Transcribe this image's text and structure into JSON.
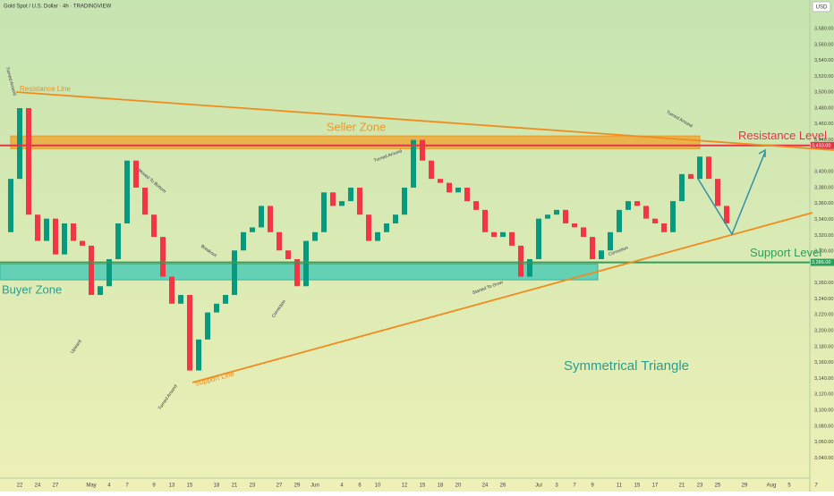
{
  "chart_data": {
    "type": "candlestick",
    "title": "Gold Spot / U.S. Dollar · 4h · TRADINGVIEW",
    "currency": "USD",
    "up_color": "#089981",
    "down_color": "#f23645",
    "categories": [
      null,
      null,
      "22",
      null,
      "24",
      null,
      "27",
      null,
      null,
      null,
      "May",
      null,
      "4",
      null,
      "7",
      null,
      null,
      "9",
      null,
      "13",
      null,
      "15",
      null,
      null,
      "18",
      null,
      "21",
      null,
      "23",
      null,
      null,
      "27",
      null,
      "29",
      null,
      "Jun",
      null,
      null,
      "4",
      null,
      "6",
      null,
      "10",
      null,
      null,
      "12",
      null,
      "15",
      null,
      "18",
      null,
      "20",
      null,
      null,
      "24",
      null,
      "26",
      null,
      null,
      null,
      "Jul",
      null,
      "3",
      null,
      "7",
      null,
      "9",
      null,
      null,
      "11",
      null,
      "15",
      null,
      "17",
      null,
      null,
      "21",
      null,
      "23",
      null,
      "25",
      null,
      null,
      "29",
      null,
      null,
      "Aug",
      null,
      "5",
      null,
      null,
      "7"
    ],
    "values": [
      3324,
      3391,
      3480,
      3346,
      3313,
      3341,
      3296,
      3335,
      3313,
      3307,
      3245,
      3256,
      3290,
      3335,
      3414,
      3380,
      3346,
      3318,
      3268,
      3234,
      3245,
      3150,
      3189,
      3223,
      3234,
      3245,
      3301,
      3324,
      3330,
      3357,
      3324,
      3301,
      3290,
      3256,
      3313,
      3324,
      3374,
      3357,
      3363,
      3380,
      3346,
      3313,
      3324,
      3335,
      3346,
      3380,
      3440,
      3414,
      3391,
      3386,
      3374,
      3380,
      3363,
      3352,
      3324,
      3318,
      3324,
      3307,
      3268,
      3290,
      3341,
      3346,
      3352,
      3335,
      3330,
      3318,
      3290,
      3301,
      3324,
      3352,
      3363,
      3357,
      3341,
      3335,
      3324,
      3363,
      3397,
      3391,
      3419,
      3391,
      3357,
      3335,
      null,
      null,
      null,
      null,
      null,
      null,
      null,
      null,
      null,
      null
    ],
    "ylim": [
      3009,
      3616
    ],
    "yticks": [
      {
        "value": 3040,
        "label": "3,040.00"
      },
      {
        "value": 3060,
        "label": "3,060.00"
      },
      {
        "value": 3080,
        "label": "3,080.00"
      },
      {
        "value": 3100,
        "label": "3,100.00"
      },
      {
        "value": 3120,
        "label": "3,120.00"
      },
      {
        "value": 3140,
        "label": "3,140.00"
      },
      {
        "value": 3160,
        "label": "3,160.00"
      },
      {
        "value": 3180,
        "label": "3,180.00"
      },
      {
        "value": 3200,
        "label": "3,200.00"
      },
      {
        "value": 3220,
        "label": "3,220.00"
      },
      {
        "value": 3240,
        "label": "3,240.00"
      },
      {
        "value": 3260,
        "label": "3,260.00"
      },
      {
        "value": 3300,
        "label": "3,300.00"
      },
      {
        "value": 3320,
        "label": "3,320.00"
      },
      {
        "value": 3340,
        "label": "3,340.00"
      },
      {
        "value": 3360,
        "label": "3,360.00"
      },
      {
        "value": 3380,
        "label": "3,380.00"
      },
      {
        "value": 3400,
        "label": "3,400.00"
      },
      {
        "value": 3440,
        "label": "3,440.00"
      },
      {
        "value": 3460,
        "label": "3,460.00"
      },
      {
        "value": 3480,
        "label": "3,480.00"
      },
      {
        "value": 3500,
        "label": "3,500.00"
      },
      {
        "value": 3520,
        "label": "3,520.00"
      },
      {
        "value": 3540,
        "label": "3,540.00"
      },
      {
        "value": 3560,
        "label": "3,560.00"
      },
      {
        "value": 3580,
        "label": "3,580.00"
      }
    ],
    "resistance_level": {
      "value": 3433,
      "label": "3,433.00",
      "name": "Resistance Level",
      "color": "#e0364a"
    },
    "support_level": {
      "value": 3286,
      "label": "3,286.00",
      "name": "Support Level",
      "color": "#2e9e5b"
    },
    "seller_zone": {
      "range": [
        3429,
        3445
      ],
      "name": "Seller Zone"
    },
    "buyer_zone": {
      "range": [
        3264,
        3284
      ],
      "name": "Buyer Zone"
    },
    "pattern": "Symmetrical Triangle",
    "resistance_line": "Resistance Line",
    "support_line": "Support Line",
    "annotations": [
      "Turned Around",
      "Moved To Bottom",
      "Breakout",
      "Correction",
      "Turned Around",
      "Started To Grow",
      "Correction",
      "Turned Around",
      "Upward",
      "Turned Around"
    ]
  }
}
